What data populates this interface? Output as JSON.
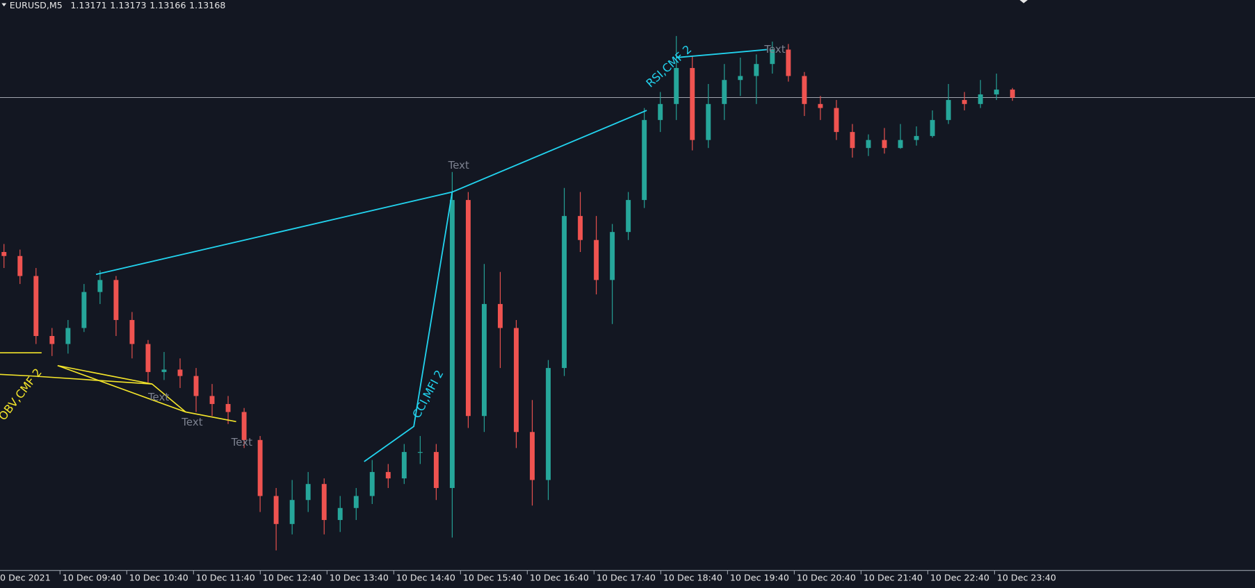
{
  "header": {
    "symbol": "EURUSD,M5",
    "quotes": [
      1.13171,
      1.13173,
      1.13166,
      1.13168
    ]
  },
  "chart_data": {
    "type": "candlestick",
    "ylim": [
      1.12577,
      1.1329
    ],
    "xlabels": [
      "0 Dec 2021",
      "10 Dec 09:40",
      "10 Dec 10:40",
      "10 Dec 11:40",
      "10 Dec 12:40",
      "10 Dec 13:40",
      "10 Dec 14:40",
      "10 Dec 15:40",
      "10 Dec 16:40",
      "10 Dec 17:40",
      "10 Dec 18:40",
      "10 Dec 19:40",
      "10 Dec 20:40",
      "10 Dec 21:40",
      "10 Dec 22:40",
      "10 Dec 23:40"
    ],
    "up_color": "#26a69a",
    "down_color": "#ef5350",
    "candles": [
      [
        1.12975,
        1.12985,
        1.12955,
        1.1297
      ],
      [
        1.1297,
        1.12978,
        1.12935,
        1.12945
      ],
      [
        1.12945,
        1.12955,
        1.1286,
        1.1287
      ],
      [
        1.1287,
        1.1288,
        1.12845,
        1.1286
      ],
      [
        1.1286,
        1.1289,
        1.12848,
        1.1288
      ],
      [
        1.1288,
        1.12935,
        1.12875,
        1.12925
      ],
      [
        1.12925,
        1.12952,
        1.1291,
        1.1294
      ],
      [
        1.1294,
        1.12945,
        1.1287,
        1.1289
      ],
      [
        1.1289,
        1.129,
        1.12842,
        1.1286
      ],
      [
        1.1286,
        1.12865,
        1.12812,
        1.12825
      ],
      [
        1.12825,
        1.1285,
        1.12815,
        1.12828
      ],
      [
        1.12828,
        1.12842,
        1.12805,
        1.1282
      ],
      [
        1.1282,
        1.1283,
        1.12775,
        1.12795
      ],
      [
        1.12795,
        1.1281,
        1.1277,
        1.12785
      ],
      [
        1.12785,
        1.12795,
        1.1276,
        1.12775
      ],
      [
        1.12775,
        1.1278,
        1.1273,
        1.1274
      ],
      [
        1.1274,
        1.12745,
        1.1265,
        1.1267
      ],
      [
        1.1267,
        1.1268,
        1.12602,
        1.12635
      ],
      [
        1.12635,
        1.1269,
        1.12622,
        1.12665
      ],
      [
        1.12665,
        1.127,
        1.1265,
        1.12685
      ],
      [
        1.12685,
        1.12692,
        1.12622,
        1.1264
      ],
      [
        1.1264,
        1.1267,
        1.12625,
        1.12655
      ],
      [
        1.12655,
        1.1268,
        1.1264,
        1.1267
      ],
      [
        1.1267,
        1.12715,
        1.1266,
        1.127
      ],
      [
        1.127,
        1.1271,
        1.1268,
        1.12692
      ],
      [
        1.12692,
        1.12735,
        1.12685,
        1.12725
      ],
      [
        1.12725,
        1.12745,
        1.1271,
        1.12725
      ],
      [
        1.12725,
        1.12735,
        1.12665,
        1.1268
      ],
      [
        1.1268,
        1.13075,
        1.12618,
        1.1304
      ],
      [
        1.1304,
        1.1305,
        1.12755,
        1.1277
      ],
      [
        1.1277,
        1.1296,
        1.1275,
        1.1291
      ],
      [
        1.1291,
        1.1295,
        1.1283,
        1.1288
      ],
      [
        1.1288,
        1.1289,
        1.1273,
        1.1275
      ],
      [
        1.1275,
        1.1279,
        1.12658,
        1.1269
      ],
      [
        1.1269,
        1.1284,
        1.12665,
        1.1283
      ],
      [
        1.1283,
        1.13055,
        1.1282,
        1.1302
      ],
      [
        1.1302,
        1.1305,
        1.12975,
        1.1299
      ],
      [
        1.1299,
        1.1302,
        1.12922,
        1.1294
      ],
      [
        1.1294,
        1.1301,
        1.12885,
        1.13
      ],
      [
        1.13,
        1.1305,
        1.1299,
        1.1304
      ],
      [
        1.1304,
        1.13155,
        1.1303,
        1.1314
      ],
      [
        1.1314,
        1.13175,
        1.13125,
        1.1316
      ],
      [
        1.1316,
        1.13245,
        1.1314,
        1.13205
      ],
      [
        1.13205,
        1.1322,
        1.13102,
        1.13115
      ],
      [
        1.13115,
        1.13185,
        1.13105,
        1.1316
      ],
      [
        1.1316,
        1.1321,
        1.1314,
        1.1319
      ],
      [
        1.1319,
        1.13218,
        1.1317,
        1.13195
      ],
      [
        1.13195,
        1.13222,
        1.1316,
        1.1321
      ],
      [
        1.1321,
        1.13238,
        1.13198,
        1.13228
      ],
      [
        1.13228,
        1.13235,
        1.13188,
        1.13195
      ],
      [
        1.13195,
        1.132,
        1.13145,
        1.1316
      ],
      [
        1.1316,
        1.1317,
        1.1314,
        1.13155
      ],
      [
        1.13155,
        1.13165,
        1.13115,
        1.13125
      ],
      [
        1.13125,
        1.13135,
        1.13093,
        1.13105
      ],
      [
        1.13105,
        1.13122,
        1.13095,
        1.13115
      ],
      [
        1.13115,
        1.1313,
        1.13098,
        1.13105
      ],
      [
        1.13105,
        1.13135,
        1.13104,
        1.13115
      ],
      [
        1.13115,
        1.13132,
        1.13108,
        1.1312
      ],
      [
        1.1312,
        1.13152,
        1.13118,
        1.1314
      ],
      [
        1.1314,
        1.13185,
        1.13135,
        1.13165
      ],
      [
        1.13165,
        1.13175,
        1.13152,
        1.1316
      ],
      [
        1.1316,
        1.1319,
        1.13155,
        1.13172
      ],
      [
        1.13172,
        1.13198,
        1.13165,
        1.13178
      ],
      [
        1.13178,
        1.1318,
        1.13164,
        1.13168
      ]
    ]
  },
  "annotations": {
    "rsi": "RSI,CMF 2",
    "cci": "CCI,MFI 2",
    "obv": "OBV,CMF 2",
    "notes": [
      "Text",
      "Text",
      "Text",
      "Text",
      "Text"
    ]
  }
}
